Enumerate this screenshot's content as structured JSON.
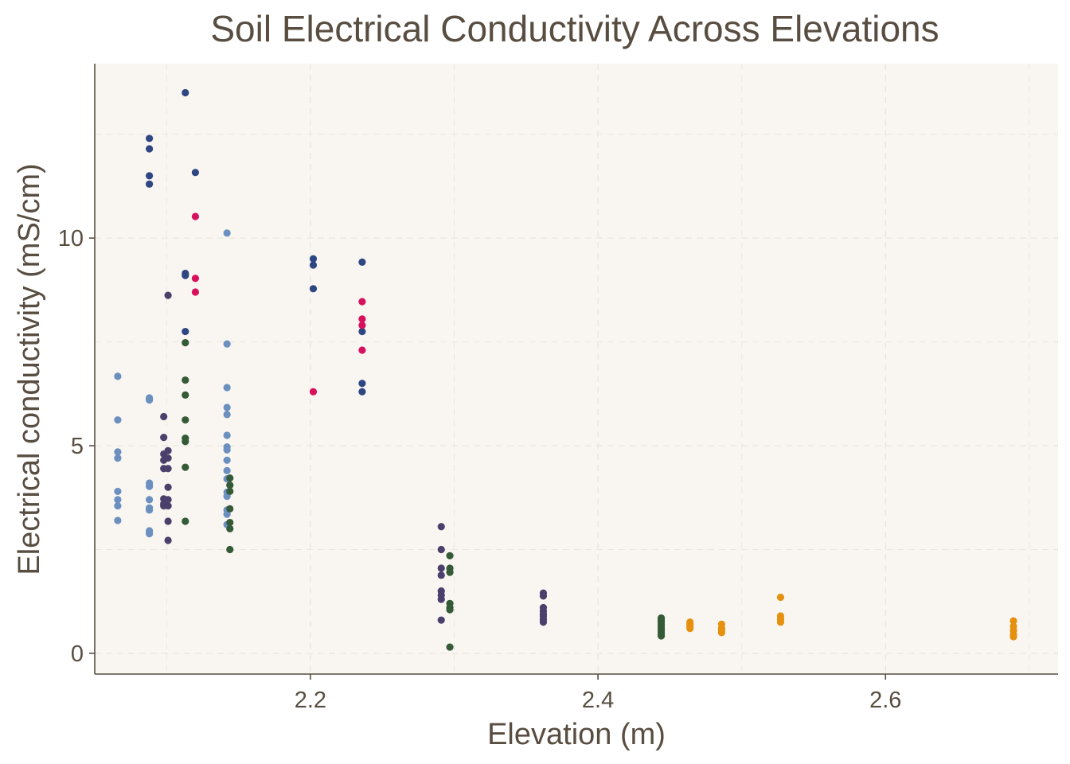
{
  "chart_data": {
    "type": "scatter",
    "title": "Soil Electrical Conductivity Across Elevations",
    "xlabel": "Elevation (m)",
    "ylabel": "Electrical conductivity (mS/cm)",
    "xlim": [
      2.05,
      2.72
    ],
    "ylim": [
      -0.5,
      14.2
    ],
    "x_ticks": [
      2.2,
      2.4,
      2.6
    ],
    "y_ticks": [
      0,
      5,
      10
    ],
    "grid": true,
    "legend": "none",
    "background": "#f9f6f1",
    "axis_color": "#584d40",
    "grid_color": "#ebe6e0",
    "series": [
      {
        "color": "#6b8fbf",
        "points": [
          [
            2.066,
            6.67
          ],
          [
            2.066,
            5.62
          ],
          [
            2.066,
            4.85
          ],
          [
            2.066,
            4.7
          ],
          [
            2.066,
            3.9
          ],
          [
            2.066,
            3.7
          ],
          [
            2.066,
            3.55
          ],
          [
            2.066,
            3.2
          ],
          [
            2.088,
            6.15
          ],
          [
            2.088,
            6.1
          ],
          [
            2.088,
            4.1
          ],
          [
            2.088,
            4.02
          ],
          [
            2.088,
            3.7
          ],
          [
            2.088,
            3.5
          ],
          [
            2.088,
            3.45
          ],
          [
            2.088,
            2.95
          ],
          [
            2.088,
            2.88
          ],
          [
            2.142,
            10.12
          ],
          [
            2.142,
            7.45
          ],
          [
            2.142,
            6.4
          ],
          [
            2.142,
            5.92
          ],
          [
            2.142,
            5.75
          ],
          [
            2.142,
            5.25
          ],
          [
            2.142,
            4.97
          ],
          [
            2.142,
            4.9
          ],
          [
            2.142,
            4.65
          ],
          [
            2.142,
            4.4
          ],
          [
            2.142,
            4.2
          ],
          [
            2.142,
            3.88
          ],
          [
            2.142,
            3.78
          ],
          [
            2.142,
            3.45
          ],
          [
            2.142,
            3.35
          ],
          [
            2.142,
            3.1
          ]
        ]
      },
      {
        "color": "#2e4682",
        "points": [
          [
            2.088,
            12.4
          ],
          [
            2.088,
            12.15
          ],
          [
            2.088,
            11.5
          ],
          [
            2.088,
            11.3
          ],
          [
            2.113,
            13.5
          ],
          [
            2.113,
            9.15
          ],
          [
            2.113,
            9.1
          ],
          [
            2.113,
            7.75
          ],
          [
            2.12,
            11.58
          ],
          [
            2.202,
            9.5
          ],
          [
            2.202,
            9.35
          ],
          [
            2.202,
            8.78
          ],
          [
            2.236,
            9.42
          ],
          [
            2.236,
            7.75
          ],
          [
            2.236,
            6.5
          ],
          [
            2.236,
            6.3
          ]
        ]
      },
      {
        "color": "#d7105e",
        "points": [
          [
            2.12,
            10.52
          ],
          [
            2.12,
            9.03
          ],
          [
            2.12,
            8.7
          ],
          [
            2.202,
            6.3
          ],
          [
            2.236,
            8.47
          ],
          [
            2.236,
            8.05
          ],
          [
            2.236,
            7.9
          ],
          [
            2.236,
            7.3
          ]
        ]
      },
      {
        "color": "#4b3f6b",
        "points": [
          [
            2.098,
            5.7
          ],
          [
            2.098,
            5.2
          ],
          [
            2.098,
            4.8
          ],
          [
            2.098,
            4.65
          ],
          [
            2.098,
            4.45
          ],
          [
            2.098,
            3.72
          ],
          [
            2.098,
            3.6
          ],
          [
            2.098,
            3.55
          ],
          [
            2.101,
            8.62
          ],
          [
            2.101,
            4.88
          ],
          [
            2.101,
            4.7
          ],
          [
            2.101,
            4.45
          ],
          [
            2.101,
            4.0
          ],
          [
            2.101,
            3.7
          ],
          [
            2.101,
            3.55
          ],
          [
            2.101,
            3.18
          ],
          [
            2.101,
            2.72
          ],
          [
            2.291,
            3.05
          ],
          [
            2.291,
            2.5
          ],
          [
            2.291,
            2.05
          ],
          [
            2.291,
            1.88
          ],
          [
            2.291,
            1.5
          ],
          [
            2.291,
            1.4
          ],
          [
            2.291,
            1.3
          ],
          [
            2.291,
            0.8
          ],
          [
            2.362,
            1.45
          ],
          [
            2.362,
            1.38
          ],
          [
            2.362,
            1.1
          ],
          [
            2.362,
            1.02
          ],
          [
            2.362,
            0.95
          ],
          [
            2.362,
            0.9
          ],
          [
            2.362,
            0.82
          ],
          [
            2.362,
            0.75
          ]
        ]
      },
      {
        "color": "#345a37",
        "points": [
          [
            2.113,
            7.48
          ],
          [
            2.113,
            6.58
          ],
          [
            2.113,
            6.22
          ],
          [
            2.113,
            5.62
          ],
          [
            2.113,
            5.18
          ],
          [
            2.113,
            5.1
          ],
          [
            2.113,
            4.48
          ],
          [
            2.113,
            3.18
          ],
          [
            2.144,
            4.22
          ],
          [
            2.144,
            4.05
          ],
          [
            2.144,
            3.9
          ],
          [
            2.144,
            3.48
          ],
          [
            2.144,
            3.15
          ],
          [
            2.144,
            3.0
          ],
          [
            2.144,
            2.5
          ],
          [
            2.297,
            2.35
          ],
          [
            2.297,
            2.05
          ],
          [
            2.297,
            1.95
          ],
          [
            2.297,
            1.2
          ],
          [
            2.297,
            1.1
          ],
          [
            2.297,
            1.05
          ],
          [
            2.297,
            0.15
          ],
          [
            2.444,
            0.85
          ],
          [
            2.444,
            0.8
          ],
          [
            2.444,
            0.75
          ],
          [
            2.444,
            0.7
          ],
          [
            2.444,
            0.65
          ],
          [
            2.444,
            0.6
          ],
          [
            2.444,
            0.55
          ],
          [
            2.444,
            0.5
          ],
          [
            2.444,
            0.45
          ],
          [
            2.444,
            0.42
          ]
        ]
      },
      {
        "color": "#e5900f",
        "points": [
          [
            2.464,
            0.75
          ],
          [
            2.464,
            0.7
          ],
          [
            2.464,
            0.65
          ],
          [
            2.464,
            0.6
          ],
          [
            2.486,
            0.7
          ],
          [
            2.486,
            0.6
          ],
          [
            2.486,
            0.55
          ],
          [
            2.486,
            0.5
          ],
          [
            2.527,
            1.35
          ],
          [
            2.527,
            0.9
          ],
          [
            2.527,
            0.82
          ],
          [
            2.527,
            0.75
          ],
          [
            2.689,
            0.78
          ],
          [
            2.689,
            0.65
          ],
          [
            2.689,
            0.55
          ],
          [
            2.689,
            0.45
          ],
          [
            2.689,
            0.4
          ]
        ]
      }
    ]
  }
}
